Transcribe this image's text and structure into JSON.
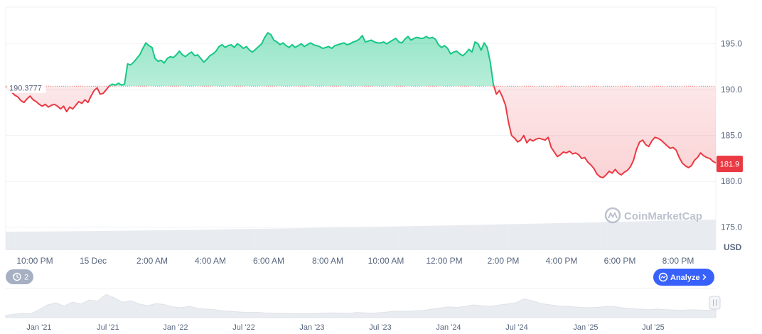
{
  "chart_data": {
    "type": "area",
    "ylabel": "USD",
    "ylim": [
      172.5,
      199
    ],
    "y_ticks": [
      "195.0",
      "190.0",
      "185.0",
      "180.0",
      "175.0"
    ],
    "y_tick_values": [
      195,
      190,
      185,
      180,
      175
    ],
    "x_ticks": [
      "10:00 PM",
      "15 Dec",
      "2:00 AM",
      "4:00 AM",
      "6:00 AM",
      "8:00 AM",
      "10:00 AM",
      "12:00 PM",
      "2:00 PM",
      "4:00 PM",
      "6:00 PM",
      "8:00 PM"
    ],
    "reference": {
      "value": 190.3777,
      "label": "190.3777"
    },
    "current": {
      "value": 181.9,
      "label": "181.9"
    },
    "colors": {
      "up": "#16c784",
      "down": "#ea3943",
      "current_badge": "#ea3943",
      "grid": "#eff2f5"
    },
    "series": [
      {
        "values": [
          190.4,
          190.0,
          189.7,
          189.4,
          189.2,
          188.8,
          188.6,
          189.0,
          189.3,
          188.9,
          188.7,
          188.4,
          188.2,
          188.4,
          188.1,
          188.3,
          188.4,
          188.2,
          187.9,
          188.2,
          187.6,
          188.1,
          187.9,
          188.3,
          188.7,
          188.5,
          188.9,
          188.6,
          189.3,
          189.9,
          190.2,
          189.5,
          189.6,
          190.0,
          190.4,
          190.6,
          190.5,
          190.7,
          190.5,
          190.6,
          192.8,
          192.7,
          193.0,
          193.4,
          193.8,
          194.5,
          195.1,
          194.8,
          194.6,
          193.4,
          193.1,
          193.2,
          192.9,
          193.4,
          193.6,
          193.5,
          193.8,
          194.2,
          193.8,
          193.6,
          193.9,
          194.1,
          193.7,
          193.8,
          193.4,
          193.0,
          193.3,
          193.7,
          193.9,
          194.2,
          194.7,
          194.9,
          194.6,
          194.8,
          194.9,
          194.6,
          195.0,
          194.8,
          194.5,
          194.7,
          194.3,
          194.1,
          194.4,
          194.7,
          195.0,
          195.7,
          196.2,
          196.0,
          195.4,
          195.2,
          194.9,
          195.1,
          194.8,
          194.6,
          194.9,
          194.6,
          194.8,
          195.0,
          194.7,
          194.9,
          195.1,
          194.9,
          194.8,
          194.7,
          194.5,
          194.6,
          194.7,
          194.5,
          194.8,
          194.9,
          195.0,
          195.1,
          194.9,
          195.0,
          195.2,
          195.3,
          195.5,
          195.9,
          195.2,
          195.3,
          195.4,
          195.2,
          195.1,
          195.1,
          195.2,
          195.0,
          195.2,
          195.4,
          195.6,
          195.2,
          195.1,
          195.5,
          195.8,
          195.4,
          195.6,
          195.7,
          195.6,
          195.6,
          195.8,
          195.6,
          195.7,
          195.5,
          194.9,
          194.6,
          194.8,
          194.5,
          193.9,
          194.1,
          194.2,
          193.9,
          193.7,
          194.0,
          194.4,
          194.1,
          195.2,
          195.0,
          194.3,
          195.1,
          194.6,
          193.0,
          190.6,
          189.5,
          189.9,
          189.2,
          188.3,
          186.4,
          185.0,
          184.7,
          184.3,
          184.5,
          185.0,
          184.2,
          184.6,
          184.4,
          184.6,
          184.7,
          184.6,
          184.5,
          184.8,
          183.7,
          183.2,
          182.7,
          182.9,
          183.2,
          183.1,
          183.3,
          183.0,
          183.1,
          182.9,
          182.5,
          182.6,
          182.1,
          181.8,
          181.4,
          180.8,
          180.5,
          180.4,
          180.7,
          181.1,
          180.9,
          181.3,
          180.9,
          180.7,
          181.0,
          181.2,
          181.6,
          182.3,
          183.5,
          184.3,
          184.5,
          184.0,
          183.8,
          184.4,
          184.8,
          184.7,
          184.5,
          184.2,
          183.9,
          183.6,
          183.7,
          183.4,
          182.6,
          182.0,
          181.7,
          181.5,
          181.7,
          182.3,
          182.6,
          183.1,
          182.8,
          182.6,
          182.5,
          182.2,
          182.0
        ]
      }
    ],
    "volume": {
      "start": 26,
      "end": 43
    },
    "navigator": {
      "x_ticks": [
        "Jan '21",
        "Jul '21",
        "Jan '22",
        "Jul '22",
        "Jan '23",
        "Jul '23",
        "Jan '24",
        "Jul '24",
        "Jan '25",
        "Jul '25"
      ],
      "values": [
        0.08,
        0.12,
        0.15,
        0.14,
        0.28,
        0.45,
        0.52,
        0.41,
        0.55,
        0.48,
        0.62,
        0.58,
        0.82,
        0.7,
        0.54,
        0.6,
        0.48,
        0.42,
        0.5,
        0.46,
        0.38,
        0.35,
        0.4,
        0.33,
        0.3,
        0.28,
        0.24,
        0.22,
        0.2,
        0.18,
        0.19,
        0.17,
        0.16,
        0.15,
        0.15,
        0.14,
        0.14,
        0.15,
        0.16,
        0.17,
        0.16,
        0.15,
        0.18,
        0.17,
        0.16,
        0.18,
        0.21,
        0.23,
        0.22,
        0.24,
        0.26,
        0.3,
        0.34,
        0.38,
        0.36,
        0.4,
        0.45,
        0.42,
        0.4,
        0.44,
        0.48,
        0.52,
        0.66,
        0.6,
        0.5,
        0.46,
        0.42,
        0.4,
        0.38,
        0.36,
        0.35,
        0.37,
        0.4,
        0.38,
        0.34,
        0.32,
        0.3,
        0.28,
        0.3,
        0.28,
        0.27,
        0.26,
        0.28,
        0.27,
        0.26,
        0.28
      ]
    }
  },
  "watermark": {
    "text": "CoinMarketCap"
  },
  "history_button": {
    "icon": "history-icon",
    "label": "2"
  },
  "analyze_button": {
    "icon": "analyze-icon",
    "label": "Analyze",
    "color": "#3861fb"
  }
}
